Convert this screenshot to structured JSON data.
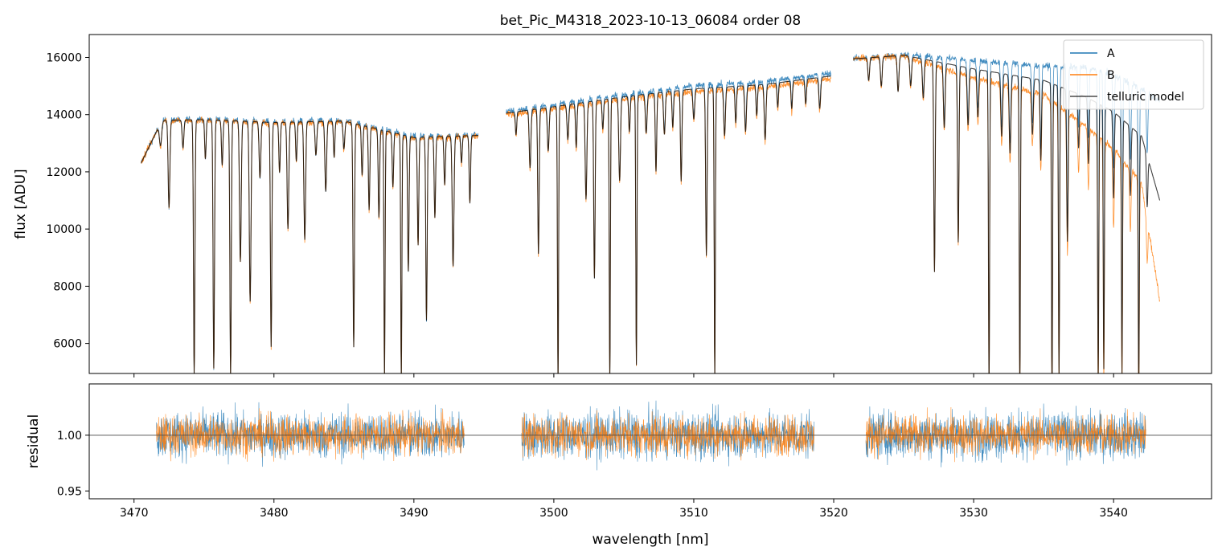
{
  "chart_data": [
    {
      "type": "line",
      "panel": "spectrum",
      "title": "bet_Pic_M4318_2023-10-13_06084  order 08",
      "xlabel": "",
      "ylabel": "flux [ADU]",
      "xlim": [
        3466.8,
        3547.0
      ],
      "ylim": [
        4950,
        16800
      ],
      "yticks": [
        6000,
        8000,
        10000,
        12000,
        14000,
        16000
      ],
      "ytick_labels": [
        "6000",
        "8000",
        "10000",
        "12000",
        "14000",
        "16000"
      ],
      "xticks": [
        3470,
        3480,
        3490,
        3500,
        3510,
        3520,
        3530,
        3540
      ],
      "grid": false,
      "legend": "top-right",
      "series": [
        {
          "name": "A",
          "color": "#1f77b4"
        },
        {
          "name": "B",
          "color": "#ff7f0e"
        },
        {
          "name": "telluric model",
          "color": "#000000"
        }
      ],
      "segments": [
        [
          3470.5,
          3494.6
        ],
        [
          3496.6,
          3519.8
        ],
        [
          3521.4,
          3543.3
        ]
      ],
      "continuum": {
        "x": [
          3470.5,
          3472,
          3475,
          3480,
          3485,
          3490,
          3494.6,
          3496.6,
          3500,
          3505,
          3510,
          3515,
          3519.8,
          3521.4,
          3525,
          3530,
          3535,
          3538,
          3540,
          3542,
          3543.3
        ],
        "A": [
          12300,
          13800,
          13850,
          13750,
          13800,
          13250,
          13300,
          14100,
          14350,
          14700,
          15000,
          15150,
          15450,
          15950,
          16100,
          15900,
          15700,
          15650,
          15400,
          14900,
          14500
        ],
        "B": [
          12300,
          13800,
          13800,
          13700,
          13750,
          13150,
          13250,
          14000,
          14200,
          14550,
          14800,
          14950,
          15250,
          15950,
          16050,
          15300,
          14700,
          13600,
          12800,
          11600,
          7500
        ]
      },
      "absorption_lines": [
        [
          3471.9,
          800,
          0.08
        ],
        [
          3472.5,
          3100,
          0.06
        ],
        [
          3473.5,
          1000,
          0.06
        ],
        [
          3474.3,
          9000,
          0.05
        ],
        [
          3475.1,
          1400,
          0.05
        ],
        [
          3475.7,
          8800,
          0.05
        ],
        [
          3476.3,
          1600,
          0.05
        ],
        [
          3476.9,
          9000,
          0.05
        ],
        [
          3477.6,
          5000,
          0.06
        ],
        [
          3478.3,
          6400,
          0.06
        ],
        [
          3479.0,
          2000,
          0.06
        ],
        [
          3479.8,
          8000,
          0.05
        ],
        [
          3480.4,
          1800,
          0.05
        ],
        [
          3481.0,
          3800,
          0.06
        ],
        [
          3481.6,
          1400,
          0.05
        ],
        [
          3482.2,
          4200,
          0.06
        ],
        [
          3483.0,
          1200,
          0.06
        ],
        [
          3483.7,
          2500,
          0.06
        ],
        [
          3484.3,
          1300,
          0.05
        ],
        [
          3485.0,
          1000,
          0.06
        ],
        [
          3485.7,
          8000,
          0.05
        ],
        [
          3486.3,
          1800,
          0.05
        ],
        [
          3486.8,
          3000,
          0.05
        ],
        [
          3487.5,
          3200,
          0.05
        ],
        [
          3487.9,
          9000,
          0.04
        ],
        [
          3488.5,
          2000,
          0.05
        ],
        [
          3489.1,
          9000,
          0.04
        ],
        [
          3489.6,
          5000,
          0.05
        ],
        [
          3490.3,
          4000,
          0.05
        ],
        [
          3490.9,
          6800,
          0.05
        ],
        [
          3491.5,
          3000,
          0.05
        ],
        [
          3492.2,
          1800,
          0.05
        ],
        [
          3492.8,
          4800,
          0.06
        ],
        [
          3493.4,
          1000,
          0.05
        ],
        [
          3494.0,
          2500,
          0.05
        ],
        [
          3497.3,
          800,
          0.05
        ],
        [
          3498.3,
          2000,
          0.06
        ],
        [
          3498.9,
          5000,
          0.05
        ],
        [
          3499.6,
          1500,
          0.06
        ],
        [
          3500.3,
          9500,
          0.04
        ],
        [
          3501.0,
          1200,
          0.06
        ],
        [
          3501.6,
          1500,
          0.05
        ],
        [
          3502.3,
          3300,
          0.06
        ],
        [
          3502.9,
          6000,
          0.05
        ],
        [
          3503.5,
          1000,
          0.05
        ],
        [
          3504.0,
          9500,
          0.04
        ],
        [
          3504.7,
          2800,
          0.06
        ],
        [
          3505.4,
          1200,
          0.05
        ],
        [
          3505.9,
          9000,
          0.04
        ],
        [
          3506.6,
          1300,
          0.06
        ],
        [
          3507.3,
          2600,
          0.05
        ],
        [
          3507.9,
          1400,
          0.06
        ],
        [
          3508.5,
          1200,
          0.05
        ],
        [
          3509.1,
          3000,
          0.05
        ],
        [
          3510.0,
          1000,
          0.06
        ],
        [
          3510.9,
          5500,
          0.05
        ],
        [
          3511.5,
          9500,
          0.04
        ],
        [
          3512.2,
          1600,
          0.06
        ],
        [
          3513.0,
          1200,
          0.05
        ],
        [
          3513.7,
          1500,
          0.06
        ],
        [
          3514.5,
          1000,
          0.05
        ],
        [
          3515.1,
          1800,
          0.06
        ],
        [
          3516.0,
          800,
          0.05
        ],
        [
          3517.0,
          900,
          0.05
        ],
        [
          3518.0,
          800,
          0.05
        ],
        [
          3519.0,
          1000,
          0.06
        ],
        [
          3522.5,
          700,
          0.06
        ],
        [
          3523.4,
          900,
          0.06
        ],
        [
          3524.6,
          1100,
          0.06
        ],
        [
          3525.5,
          900,
          0.06
        ],
        [
          3526.4,
          1200,
          0.06
        ],
        [
          3527.2,
          6500,
          0.05
        ],
        [
          3527.9,
          2000,
          0.06
        ],
        [
          3528.9,
          5500,
          0.05
        ],
        [
          3529.6,
          1800,
          0.06
        ],
        [
          3530.3,
          1500,
          0.06
        ],
        [
          3531.1,
          10000,
          0.04
        ],
        [
          3532.0,
          2000,
          0.06
        ],
        [
          3532.6,
          2500,
          0.06
        ],
        [
          3533.3,
          10000,
          0.04
        ],
        [
          3534.2,
          1800,
          0.06
        ],
        [
          3534.8,
          2600,
          0.05
        ],
        [
          3535.6,
          10000,
          0.04
        ],
        [
          3536.1,
          9500,
          0.04
        ],
        [
          3536.7,
          5000,
          0.05
        ],
        [
          3537.5,
          1800,
          0.05
        ],
        [
          3538.2,
          2200,
          0.05
        ],
        [
          3538.9,
          9500,
          0.04
        ],
        [
          3539.3,
          9000,
          0.04
        ],
        [
          3540.0,
          3000,
          0.05
        ],
        [
          3540.6,
          9000,
          0.04
        ],
        [
          3541.2,
          2500,
          0.05
        ],
        [
          3541.8,
          9500,
          0.04
        ],
        [
          3542.4,
          2000,
          0.05
        ]
      ]
    },
    {
      "type": "line",
      "panel": "residual",
      "title": "",
      "xlabel": "wavelength [nm]",
      "ylabel": "residual",
      "xlim": [
        3466.8,
        3547.0
      ],
      "ylim": [
        0.943,
        1.046
      ],
      "yticks": [
        0.95,
        1.0
      ],
      "ytick_labels": [
        "0.95",
        "1.00"
      ],
      "xticks": [
        3470,
        3480,
        3490,
        3500,
        3510,
        3520,
        3530,
        3540
      ],
      "xtick_labels": [
        "3470",
        "3480",
        "3490",
        "3500",
        "3510",
        "3520",
        "3530",
        "3540"
      ],
      "reference_line": 1.0,
      "segments": [
        [
          3471.6,
          3493.6
        ],
        [
          3497.7,
          3518.6
        ],
        [
          3522.3,
          3542.3
        ]
      ],
      "noise": {
        "A": 0.02,
        "B": 0.017
      },
      "series": [
        {
          "name": "A",
          "color": "#1f77b4"
        },
        {
          "name": "B",
          "color": "#ff7f0e"
        }
      ]
    }
  ]
}
